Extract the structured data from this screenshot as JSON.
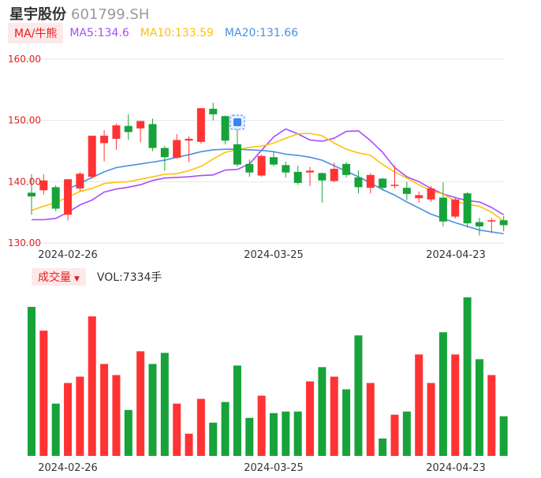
{
  "header": {
    "name": "星宇股份",
    "code": "601799.SH"
  },
  "ma_legend": {
    "tag": "MA/牛熊",
    "items": [
      {
        "label": "MA5:134.6",
        "color": "#a64dff"
      },
      {
        "label": "MA10:133.59",
        "color": "#ffc107"
      },
      {
        "label": "MA20:131.66",
        "color": "#4a90e2"
      }
    ]
  },
  "volume_legend": {
    "tag": "成交量",
    "arrow": "▼",
    "text": "VOL:7334手"
  },
  "colors": {
    "up": "#ff3333",
    "down": "#17a33a"
  },
  "chart_data": [
    {
      "type": "candlestick",
      "ylim": [
        130,
        160
      ],
      "yticks": [
        "160.00",
        "150.00",
        "140.00",
        "130.00"
      ],
      "xticks": [
        "2024-02-26",
        "2024-03-25",
        "2024-04-23"
      ],
      "candles": [
        [
          138.2,
          137.6,
          141.2,
          134.6
        ],
        [
          138.6,
          140.2,
          141.2,
          137.9
        ],
        [
          139.1,
          135.6,
          139.4,
          135.2
        ],
        [
          134.6,
          140.4,
          140.4,
          133.7
        ],
        [
          138.9,
          141.3,
          141.6,
          138.4
        ],
        [
          140.8,
          147.5,
          147.5,
          140.5
        ],
        [
          146.3,
          147.5,
          148.4,
          143.3
        ],
        [
          147.0,
          149.2,
          149.5,
          145.2
        ],
        [
          149.1,
          148.1,
          151.0,
          146.8
        ],
        [
          148.7,
          149.9,
          149.9,
          146.4
        ],
        [
          149.4,
          145.5,
          150.3,
          145.0
        ],
        [
          145.5,
          144.0,
          145.8,
          141.8
        ],
        [
          143.9,
          146.8,
          147.8,
          143.7
        ],
        [
          146.7,
          147.0,
          147.4,
          143.2
        ],
        [
          146.5,
          152.0,
          152.0,
          146.2
        ],
        [
          151.9,
          151.0,
          152.9,
          150.0
        ],
        [
          150.7,
          146.7,
          150.8,
          146.1
        ],
        [
          146.1,
          142.8,
          148.6,
          142.5
        ],
        [
          142.9,
          141.5,
          143.6,
          140.8
        ],
        [
          141.0,
          144.2,
          144.4,
          140.8
        ],
        [
          144.0,
          142.8,
          145.0,
          142.5
        ],
        [
          142.7,
          141.5,
          143.3,
          140.7
        ],
        [
          141.6,
          139.8,
          142.6,
          139.5
        ],
        [
          141.5,
          141.8,
          142.4,
          139.3
        ],
        [
          141.4,
          140.2,
          141.5,
          136.6
        ],
        [
          140.1,
          142.1,
          143.1,
          139.9
        ],
        [
          142.9,
          141.1,
          143.2,
          140.7
        ],
        [
          140.7,
          139.1,
          141.8,
          138.1
        ],
        [
          139.0,
          141.1,
          141.4,
          138.1
        ],
        [
          140.5,
          139.0,
          140.6,
          138.6
        ],
        [
          139.3,
          139.5,
          142.6,
          138.9
        ],
        [
          139.0,
          138.0,
          140.0,
          137.0
        ],
        [
          137.3,
          137.8,
          138.4,
          136.6
        ],
        [
          137.1,
          138.9,
          139.3,
          136.7
        ],
        [
          137.4,
          133.5,
          139.9,
          132.7
        ],
        [
          134.3,
          137.1,
          137.5,
          134.0
        ],
        [
          138.1,
          133.2,
          138.3,
          132.5
        ],
        [
          133.4,
          132.7,
          134.1,
          131.2
        ],
        [
          133.5,
          133.7,
          134.1,
          131.6
        ],
        [
          133.7,
          132.9,
          134.4,
          131.9
        ]
      ],
      "ma": {
        "ma5": [
          133.8,
          133.8,
          134.0,
          135.0,
          136.2,
          137.0,
          138.3,
          138.8,
          139.1,
          139.5,
          140.2,
          140.6,
          140.7,
          140.8,
          141.0,
          141.1,
          141.9,
          142.0,
          142.9,
          145.1,
          147.3,
          148.6,
          147.8,
          146.8,
          146.6,
          147.1,
          148.2,
          148.3,
          146.7,
          144.8,
          142.3,
          140.8,
          140.0,
          138.9,
          138.0,
          137.4,
          136.9,
          136.7,
          135.8,
          134.6
        ],
        "ma10": [
          135.3,
          136.0,
          136.6,
          137.5,
          138.4,
          138.9,
          139.7,
          139.9,
          140.0,
          140.4,
          140.8,
          141.2,
          141.3,
          141.8,
          142.5,
          143.7,
          144.8,
          145.2,
          145.6,
          145.8,
          146.3,
          147.1,
          147.8,
          147.9,
          147.5,
          146.3,
          145.3,
          144.7,
          144.3,
          142.8,
          141.6,
          140.6,
          139.5,
          138.5,
          138.0,
          136.8,
          136.3,
          136.0,
          135.0,
          133.6
        ],
        "ma20": [
          138.8,
          139.7,
          140.7,
          141.6,
          142.3,
          142.6,
          142.9,
          143.2,
          143.5,
          144.0,
          144.4,
          144.9,
          145.2,
          145.3,
          145.3,
          145.2,
          145.1,
          144.9,
          144.5,
          144.3,
          144.0,
          143.5,
          142.6,
          141.7,
          140.8,
          139.8,
          138.7,
          137.8,
          136.7,
          135.7,
          134.7,
          134.0,
          133.3,
          132.7,
          132.1,
          131.8,
          131.5
        ]
      }
    },
    {
      "type": "bar",
      "title": "成交量",
      "volume_relative": [
        0.94,
        0.79,
        0.33,
        0.46,
        0.5,
        0.88,
        0.58,
        0.51,
        0.29,
        0.66,
        0.58,
        0.65,
        0.33,
        0.14,
        0.36,
        0.21,
        0.34,
        0.57,
        0.24,
        0.38,
        0.27,
        0.28,
        0.28,
        0.47,
        0.56,
        0.5,
        0.42,
        0.76,
        0.46,
        0.11,
        0.26,
        0.28,
        0.64,
        0.46,
        0.78,
        0.64,
        1.0,
        0.61,
        0.51,
        0.25
      ],
      "xticks": [
        "2024-02-26",
        "2024-03-25",
        "2024-04-23"
      ]
    }
  ]
}
